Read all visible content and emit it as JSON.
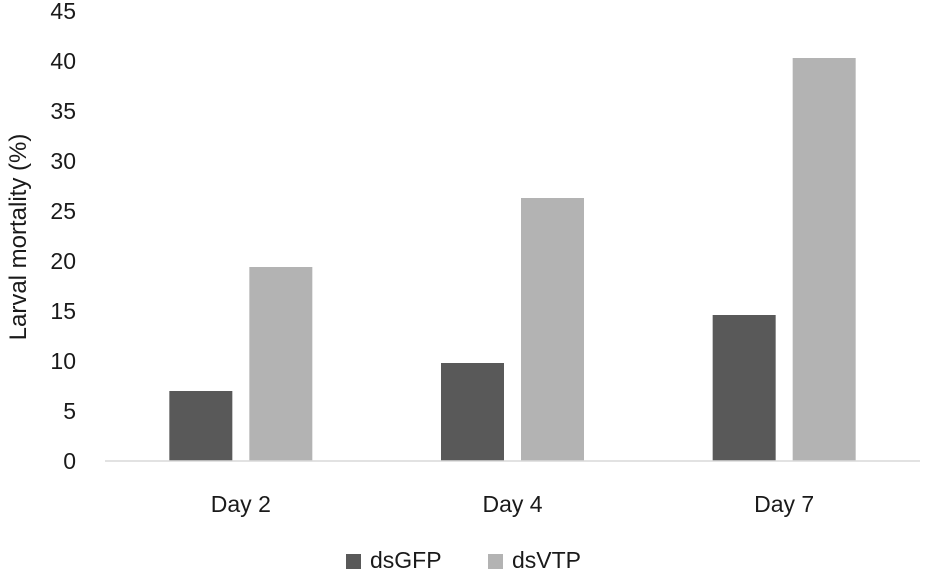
{
  "chart_data": {
    "type": "bar",
    "categories": [
      "Day 2",
      "Day 4",
      "Day 7"
    ],
    "series": [
      {
        "name": "dsGFP",
        "values": [
          7.0,
          9.8,
          14.6
        ],
        "color": "#595959"
      },
      {
        "name": "dsVTP",
        "values": [
          19.4,
          26.3,
          40.3
        ],
        "color": "#b3b3b3"
      }
    ],
    "title": "",
    "xlabel": "",
    "ylabel": "Larval mortality (%)",
    "ylim": [
      0,
      45
    ],
    "yticks": [
      0,
      5,
      10,
      15,
      20,
      25,
      30,
      35,
      40,
      45
    ],
    "grid": false,
    "legend_position": "bottom",
    "axis_color": "#d9d9d9"
  }
}
